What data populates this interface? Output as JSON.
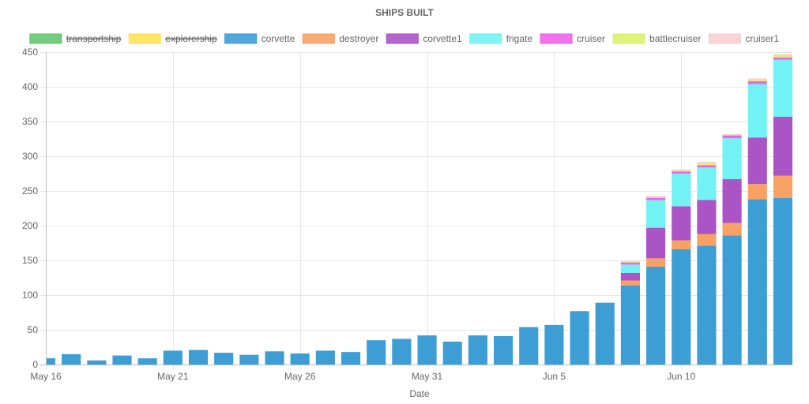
{
  "chart_data": {
    "type": "bar",
    "stacked": true,
    "title": "SHIPS BUILT",
    "xlabel": "Date",
    "ylabel": "",
    "ylim": [
      0,
      450
    ],
    "y_ticks": [
      "0",
      "50",
      "100",
      "150",
      "200",
      "250",
      "300",
      "350",
      "400",
      "450"
    ],
    "x_tick_labels": [
      {
        "index": 0,
        "label": "May 16"
      },
      {
        "index": 5,
        "label": "May 21"
      },
      {
        "index": 10,
        "label": "May 26"
      },
      {
        "index": 15,
        "label": "May 31"
      },
      {
        "index": 20,
        "label": "Jun 5"
      },
      {
        "index": 25,
        "label": "Jun 10"
      }
    ],
    "grid": true,
    "legend_position": "top",
    "categories": [
      "May 16",
      "May 17",
      "May 18",
      "May 19",
      "May 20",
      "May 21",
      "May 22",
      "May 23",
      "May 24",
      "May 25",
      "May 26",
      "May 27",
      "May 28",
      "May 29",
      "May 30",
      "May 31",
      "Jun 1",
      "Jun 2",
      "Jun 3",
      "Jun 4",
      "Jun 5",
      "Jun 6",
      "Jun 7",
      "Jun 8",
      "Jun 9",
      "Jun 10",
      "Jun 11",
      "Jun 12",
      "Jun 13",
      "Jun 14"
    ],
    "series": [
      {
        "name": "transportship",
        "color": "#5ec26a",
        "hidden": true,
        "values": [
          0,
          0,
          0,
          0,
          0,
          0,
          0,
          0,
          0,
          0,
          0,
          0,
          0,
          0,
          0,
          0,
          0,
          0,
          0,
          0,
          0,
          0,
          0,
          0,
          0,
          0,
          0,
          0,
          0,
          0
        ]
      },
      {
        "name": "explorership",
        "color": "#ffe14d",
        "hidden": true,
        "values": [
          0,
          0,
          0,
          0,
          0,
          0,
          0,
          0,
          0,
          0,
          0,
          0,
          0,
          0,
          0,
          0,
          0,
          0,
          0,
          0,
          0,
          0,
          0,
          0,
          0,
          0,
          0,
          0,
          0,
          0
        ]
      },
      {
        "name": "corvette",
        "color": "#3399d3",
        "hidden": false,
        "values": [
          9,
          15,
          6,
          13,
          9,
          20,
          21,
          17,
          14,
          19,
          16,
          20,
          18,
          35,
          37,
          42,
          33,
          42,
          41,
          54,
          57,
          77,
          89,
          114,
          141,
          166,
          171,
          186,
          238,
          240
        ]
      },
      {
        "name": "destroyer",
        "color": "#f79c5c",
        "hidden": false,
        "values": [
          0,
          0,
          0,
          0,
          0,
          0,
          0,
          0,
          0,
          0,
          0,
          0,
          0,
          0,
          0,
          0,
          0,
          0,
          0,
          0,
          0,
          0,
          0,
          7,
          12,
          13,
          17,
          18,
          22,
          32
        ]
      },
      {
        "name": "corvette1",
        "color": "#a64bc2",
        "hidden": false,
        "values": [
          0,
          0,
          0,
          0,
          0,
          0,
          0,
          0,
          0,
          0,
          0,
          0,
          0,
          0,
          0,
          0,
          0,
          0,
          0,
          0,
          0,
          0,
          0,
          11,
          44,
          49,
          49,
          63,
          67,
          85
        ]
      },
      {
        "name": "frigate",
        "color": "#6af1f3",
        "hidden": false,
        "values": [
          0,
          0,
          0,
          0,
          0,
          0,
          0,
          0,
          0,
          0,
          0,
          0,
          0,
          0,
          0,
          0,
          0,
          0,
          0,
          0,
          0,
          0,
          0,
          12,
          40,
          47,
          47,
          59,
          77,
          82
        ]
      },
      {
        "name": "cruiser",
        "color": "#ee5ae8",
        "hidden": false,
        "values": [
          0,
          0,
          0,
          0,
          0,
          0,
          0,
          0,
          0,
          0,
          0,
          0,
          0,
          0,
          0,
          0,
          0,
          0,
          0,
          0,
          0,
          0,
          0,
          3,
          3,
          3,
          3,
          4,
          4,
          3
        ]
      },
      {
        "name": "battlecruiser",
        "color": "#d9f062",
        "hidden": false,
        "values": [
          0,
          0,
          0,
          0,
          0,
          0,
          0,
          0,
          0,
          0,
          0,
          0,
          0,
          0,
          0,
          0,
          0,
          0,
          0,
          0,
          0,
          0,
          0,
          1,
          1,
          1,
          2,
          1,
          2,
          3
        ]
      },
      {
        "name": "cruiser1",
        "color": "#f8cccc",
        "hidden": false,
        "values": [
          0,
          0,
          0,
          0,
          0,
          0,
          0,
          0,
          0,
          0,
          0,
          0,
          0,
          0,
          0,
          0,
          0,
          0,
          0,
          0,
          0,
          0,
          0,
          1,
          2,
          2,
          3,
          1,
          2,
          2
        ]
      }
    ]
  }
}
